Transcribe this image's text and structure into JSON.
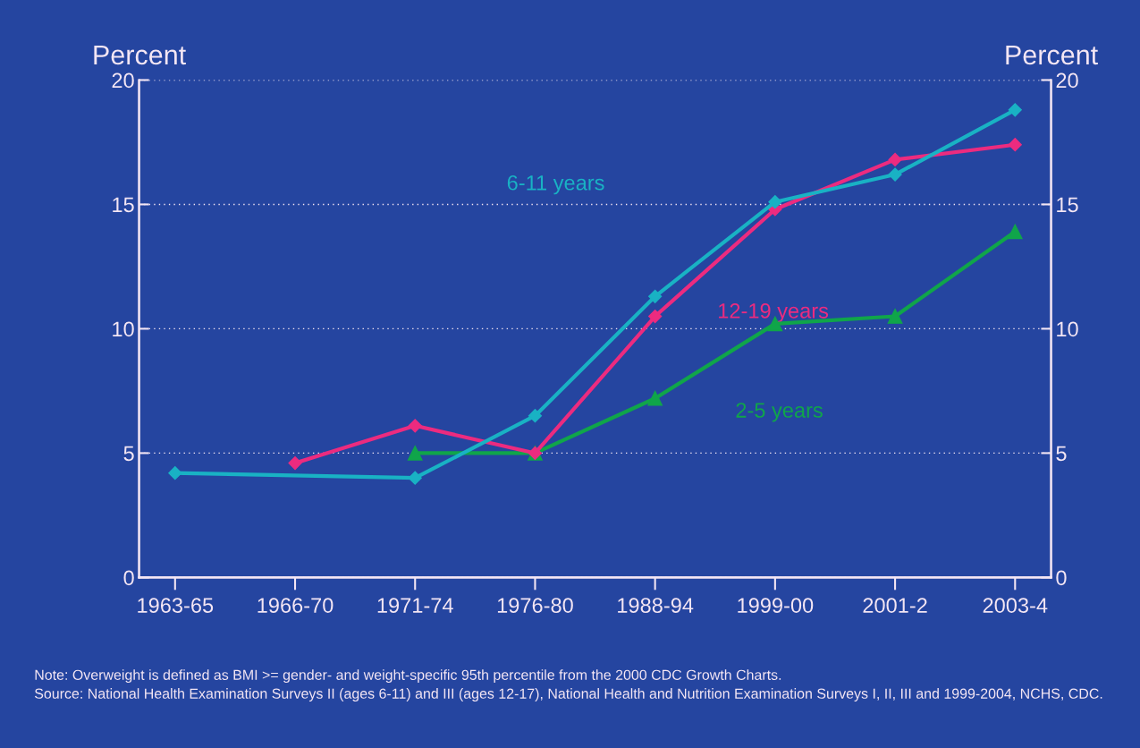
{
  "chart_data": {
    "type": "line",
    "ylabel": "Percent",
    "y2label": "Percent",
    "categories": [
      "1963-65",
      "1966-70",
      "1971-74",
      "1976-80",
      "1988-94",
      "1999-00",
      "2001-2",
      "2003-4"
    ],
    "ylim": [
      0,
      20
    ],
    "y2lim": [
      0,
      20
    ],
    "yticks": [
      0,
      5,
      10,
      15,
      20
    ],
    "y2ticks": [
      0,
      5,
      10,
      15,
      20
    ],
    "grid": "y",
    "line_style": "solid",
    "series": [
      {
        "name": "6-11 years",
        "color": "#19b2c4",
        "marker": "diamond",
        "values": [
          4.2,
          null,
          4.0,
          6.5,
          11.3,
          15.1,
          16.2,
          18.8
        ]
      },
      {
        "name": "12-19 years",
        "color": "#ec2b7f",
        "marker": "diamond",
        "values": [
          null,
          4.6,
          6.1,
          5.0,
          10.5,
          14.8,
          16.8,
          17.4
        ]
      },
      {
        "name": "2-5 years",
        "color": "#10a54a",
        "marker": "triangle",
        "values": [
          null,
          null,
          5.0,
          5.0,
          7.2,
          10.2,
          10.5,
          13.9
        ]
      }
    ],
    "annotations": [
      "Note: Overweight is defined as BMI >= gender- and weight-specific 95th percentile from the 2000 CDC Growth Charts.",
      "Source: National Health Examination Surveys II (ages 6-11) and III (ages 12-17), National Health and Nutrition Examination Surveys I, II, III and 1999-2004, NCHS, CDC."
    ]
  }
}
